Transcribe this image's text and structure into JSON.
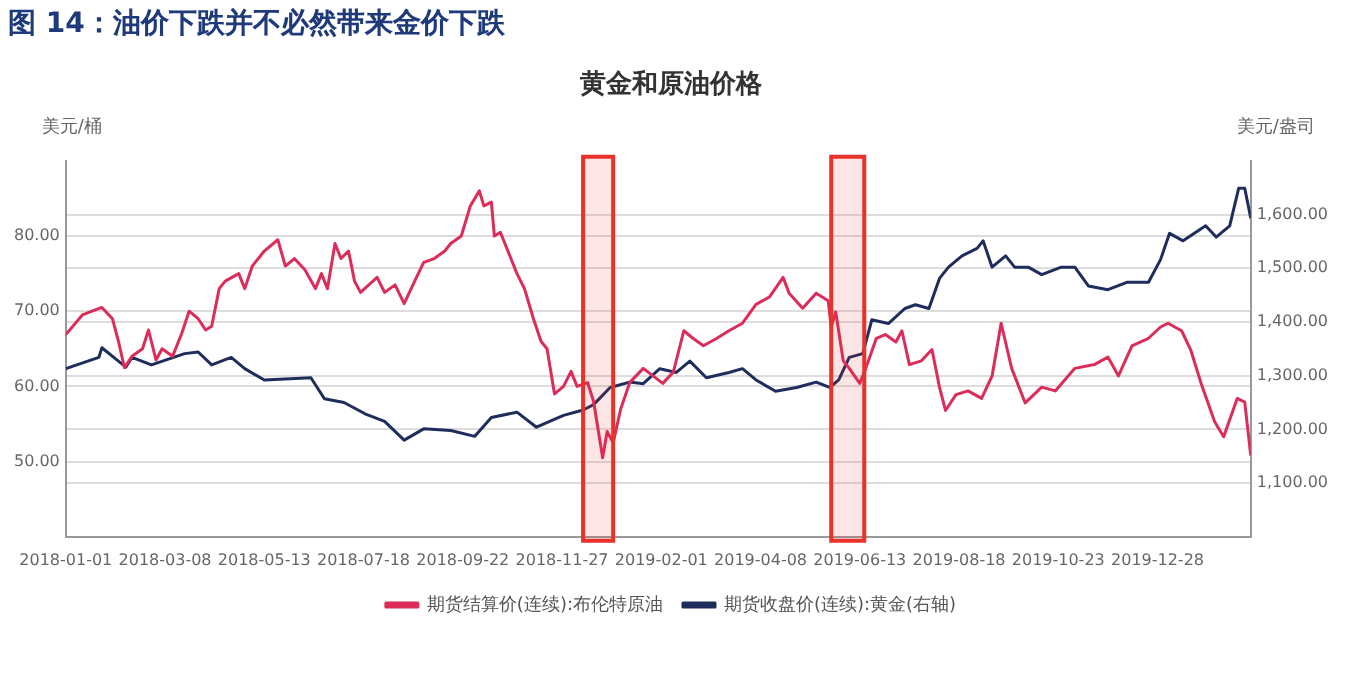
{
  "chart_data": {
    "type": "line",
    "title": "图 14：油价下跌并不必然带来金价下跌",
    "subtitle": "黄金和原油价格",
    "ylabel": "美元/桶",
    "y2label": "美元/盎司",
    "xlim": [
      "2018-01-01",
      "2020-02-28"
    ],
    "xticks": [
      "2018-01-01",
      "2018-03-08",
      "2018-05-13",
      "2018-07-18",
      "2018-09-22",
      "2018-11-27",
      "2019-02-01",
      "2019-04-08",
      "2019-06-13",
      "2019-08-18",
      "2019-10-23",
      "2019-12-28"
    ],
    "ylim": [
      40,
      90
    ],
    "yticks": [
      {
        "value": 50,
        "label": "50.00"
      },
      {
        "value": 60,
        "label": "60.00"
      },
      {
        "value": 70,
        "label": "70.00"
      },
      {
        "value": 80,
        "label": "80.00"
      }
    ],
    "y2lim": [
      1000,
      1700
    ],
    "y2ticks": [
      {
        "value": 1100,
        "label": "1,100.00"
      },
      {
        "value": 1200,
        "label": "1,200.00"
      },
      {
        "value": 1300,
        "label": "1,300.00"
      },
      {
        "value": 1400,
        "label": "1,400.00"
      },
      {
        "value": 1500,
        "label": "1,500.00"
      },
      {
        "value": 1600,
        "label": "1,600.00"
      }
    ],
    "grid": "y",
    "legend": "bottom",
    "marker": "none",
    "line_style": "solid",
    "bands": [
      {
        "axis": "x",
        "from": "2018-12-11",
        "to": "2018-12-31",
        "color": "#e8322a"
      },
      {
        "axis": "x",
        "from": "2019-05-25",
        "to": "2019-06-16",
        "color": "#e8322a"
      }
    ],
    "series": [
      {
        "name": "期货结算价(连续):布伦特原油",
        "color": "#dc2d5a",
        "axis": "y",
        "x": [
          "2018-01-01",
          "2018-01-12",
          "2018-01-25",
          "2018-02-01",
          "2018-02-05",
          "2018-02-09",
          "2018-02-14",
          "2018-02-21",
          "2018-02-25",
          "2018-03-02",
          "2018-03-06",
          "2018-03-13",
          "2018-03-19",
          "2018-03-24",
          "2018-03-30",
          "2018-04-04",
          "2018-04-08",
          "2018-04-13",
          "2018-04-17",
          "2018-04-26",
          "2018-04-30",
          "2018-05-05",
          "2018-05-13",
          "2018-05-22",
          "2018-05-27",
          "2018-06-02",
          "2018-06-09",
          "2018-06-16",
          "2018-06-20",
          "2018-06-24",
          "2018-06-29",
          "2018-07-03",
          "2018-07-08",
          "2018-07-12",
          "2018-07-16",
          "2018-07-27",
          "2018-08-01",
          "2018-08-08",
          "2018-08-14",
          "2018-08-21",
          "2018-08-27",
          "2018-09-03",
          "2018-09-10",
          "2018-09-14",
          "2018-09-21",
          "2018-09-27",
          "2018-10-03",
          "2018-10-06",
          "2018-10-11",
          "2018-10-13",
          "2018-10-17",
          "2018-10-24",
          "2018-10-28",
          "2018-11-02",
          "2018-11-08",
          "2018-11-13",
          "2018-11-17",
          "2018-11-22",
          "2018-11-28",
          "2018-12-03",
          "2018-12-07",
          "2018-12-14",
          "2018-12-18",
          "2018-12-24",
          "2018-12-27",
          "2018-12-31",
          "2019-01-05",
          "2019-01-11",
          "2019-01-20",
          "2019-02-02",
          "2019-02-09",
          "2019-02-16",
          "2019-02-22",
          "2019-03-01",
          "2019-03-10",
          "2019-03-18",
          "2019-03-27",
          "2019-04-05",
          "2019-04-14",
          "2019-04-23",
          "2019-04-27",
          "2019-05-06",
          "2019-05-15",
          "2019-05-23",
          "2019-05-25",
          "2019-05-28",
          "2019-06-02",
          "2019-06-06",
          "2019-06-13",
          "2019-06-17",
          "2019-06-24",
          "2019-06-30",
          "2019-07-07",
          "2019-07-11",
          "2019-07-16",
          "2019-07-24",
          "2019-07-31",
          "2019-08-05",
          "2019-08-09",
          "2019-08-16",
          "2019-08-24",
          "2019-09-02",
          "2019-09-09",
          "2019-09-15",
          "2019-09-22",
          "2019-10-01",
          "2019-10-12",
          "2019-10-21",
          "2019-11-03",
          "2019-11-16",
          "2019-11-25",
          "2019-12-02",
          "2019-12-11",
          "2019-12-22",
          "2019-12-30",
          "2020-01-04",
          "2020-01-13",
          "2020-01-19",
          "2020-01-26",
          "2020-02-04",
          "2020-02-10",
          "2020-02-19",
          "2020-02-24",
          "2020-02-28"
        ],
        "values": [
          66.9,
          69.5,
          70.5,
          69,
          66,
          62.5,
          64,
          65,
          67.5,
          63.5,
          65,
          64,
          67,
          70,
          69,
          67.5,
          68,
          73,
          74,
          75,
          73,
          76,
          78,
          79.5,
          76,
          77,
          75.5,
          73,
          75,
          73,
          79,
          77,
          78,
          74,
          72.5,
          74.5,
          72.5,
          73.5,
          71,
          74,
          76.5,
          77,
          78,
          79,
          80,
          84,
          86,
          84,
          84.5,
          80,
          80.5,
          77,
          75,
          73,
          69,
          66,
          65,
          59,
          60,
          62,
          60,
          60.5,
          58,
          50.5,
          54,
          52.5,
          57,
          60.5,
          62.4,
          60.4,
          61.9,
          67.4,
          66.4,
          65.4,
          66.4,
          67.4,
          68.4,
          70.9,
          71.9,
          74.5,
          72.4,
          70.4,
          72.4,
          71.4,
          67.9,
          69.9,
          63.4,
          62.4,
          60.4,
          62.4,
          66.4,
          66.9,
          65.9,
          67.4,
          62.9,
          63.4,
          64.9,
          59.9,
          56.8,
          58.9,
          59.4,
          58.4,
          61.4,
          68.4,
          62.4,
          57.8,
          59.9,
          59.4,
          62.4,
          62.9,
          63.9,
          61.4,
          65.4,
          66.4,
          67.9,
          68.4,
          67.4,
          64.9,
          60.4,
          55.3,
          53.3,
          58.4,
          57.9,
          50.8
        ]
      },
      {
        "name": "期货收盘价(连续):黄金(右轴)",
        "color": "#1f2d5c",
        "axis": "y2",
        "x": [
          "2018-01-01",
          "2018-01-23",
          "2018-01-25",
          "2018-02-05",
          "2018-02-10",
          "2018-02-14",
          "2018-02-27",
          "2018-03-21",
          "2018-03-30",
          "2018-04-08",
          "2018-04-21",
          "2018-04-30",
          "2018-05-13",
          "2018-06-13",
          "2018-06-22",
          "2018-07-05",
          "2018-07-19",
          "2018-08-01",
          "2018-08-14",
          "2018-08-27",
          "2018-09-14",
          "2018-09-30",
          "2018-10-11",
          "2018-10-28",
          "2018-11-10",
          "2018-11-28",
          "2018-12-11",
          "2018-12-18",
          "2018-12-29",
          "2019-01-11",
          "2019-01-20",
          "2019-01-31",
          "2019-02-11",
          "2019-02-20",
          "2019-03-03",
          "2019-03-18",
          "2019-03-27",
          "2019-04-05",
          "2019-04-18",
          "2019-05-02",
          "2019-05-15",
          "2019-05-24",
          "2019-05-30",
          "2019-06-06",
          "2019-06-15",
          "2019-06-21",
          "2019-07-02",
          "2019-07-13",
          "2019-07-20",
          "2019-07-29",
          "2019-08-05",
          "2019-08-11",
          "2019-08-20",
          "2019-08-30",
          "2019-09-03",
          "2019-09-09",
          "2019-09-18",
          "2019-09-24",
          "2019-10-03",
          "2019-10-12",
          "2019-10-25",
          "2019-11-03",
          "2019-11-12",
          "2019-11-25",
          "2019-12-08",
          "2019-12-22",
          "2019-12-30",
          "2020-01-05",
          "2020-01-14",
          "2020-01-29",
          "2020-02-05",
          "2020-02-14",
          "2020-02-20",
          "2020-02-24",
          "2020-02-28"
        ],
        "values": [
          1313,
          1334,
          1352,
          1327,
          1316,
          1334,
          1320,
          1341,
          1344,
          1320,
          1334,
          1313,
          1292,
          1296,
          1257,
          1250,
          1229,
          1215,
          1180,
          1201,
          1198,
          1187,
          1222,
          1232,
          1204,
          1226,
          1236,
          1246,
          1278,
          1288,
          1285,
          1313,
          1306,
          1327,
          1296,
          1306,
          1313,
          1292,
          1271,
          1278,
          1288,
          1278,
          1292,
          1334,
          1341,
          1404,
          1397,
          1425,
          1432,
          1425,
          1481,
          1502,
          1523,
          1537,
          1551,
          1502,
          1523,
          1502,
          1502,
          1488,
          1502,
          1502,
          1467,
          1460,
          1474,
          1474,
          1516,
          1565,
          1551,
          1579,
          1558,
          1579,
          1649,
          1649,
          1593
        ]
      }
    ]
  }
}
